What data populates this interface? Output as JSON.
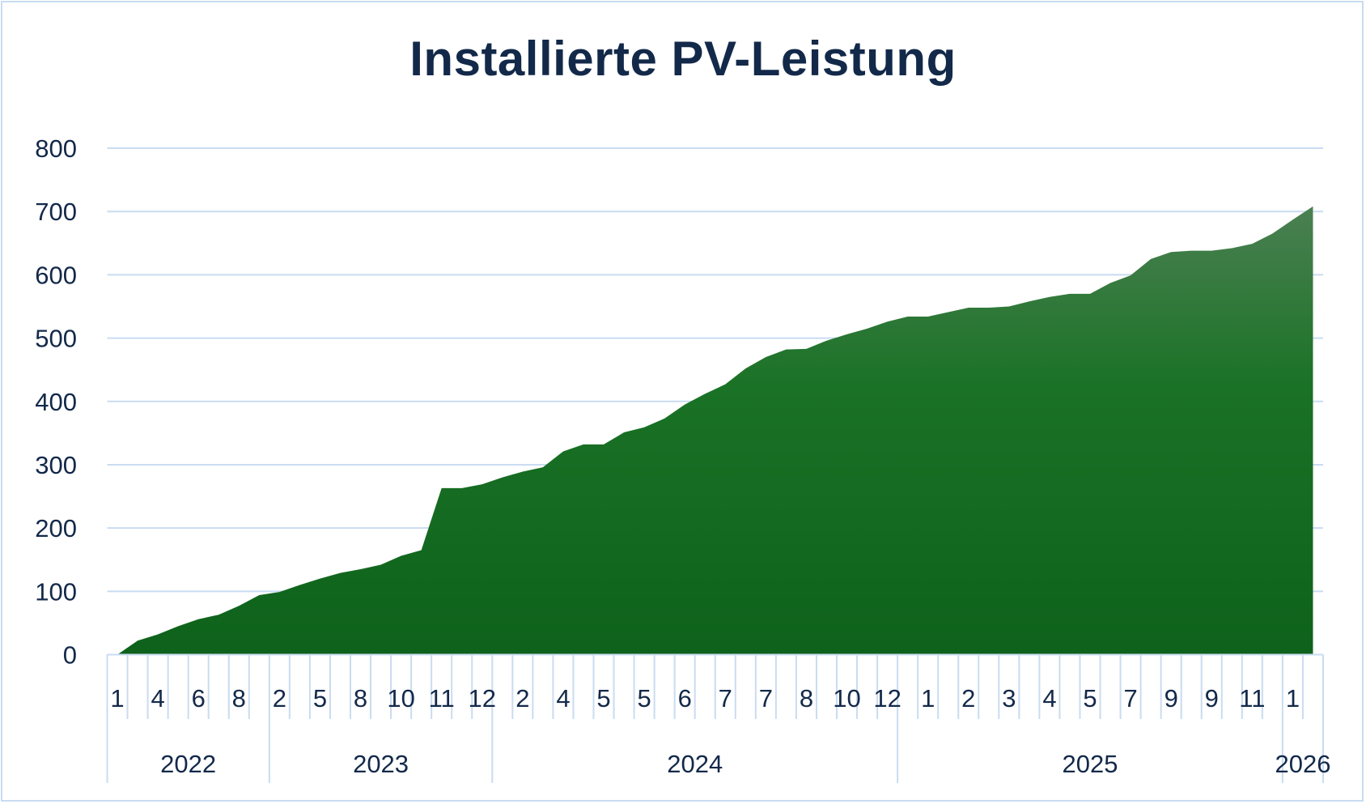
{
  "chart_data": {
    "type": "area",
    "title": "Installierte PV-Leistung",
    "xlabel": "",
    "ylabel": "",
    "ylim": [
      0,
      800
    ],
    "yticks": [
      0,
      100,
      200,
      300,
      400,
      500,
      600,
      700,
      800
    ],
    "grid": true,
    "legend": "none",
    "month_tick_labels": [
      "1",
      "4",
      "6",
      "8",
      "2",
      "5",
      "8",
      "10",
      "11",
      "12",
      "2",
      "4",
      "5",
      "5",
      "6",
      "7",
      "7",
      "8",
      "10",
      "12",
      "1",
      "2",
      "3",
      "4",
      "5",
      "7",
      "9",
      "9",
      "11",
      "1"
    ],
    "month_label_every": 2,
    "year_groups": [
      {
        "label": "2022",
        "start": 0,
        "count": 8
      },
      {
        "label": "2023",
        "start": 8,
        "count": 11
      },
      {
        "label": "2024",
        "start": 19,
        "count": 20
      },
      {
        "label": "2025",
        "start": 39,
        "count": 19
      },
      {
        "label": "2026",
        "start": 58,
        "count": 2
      }
    ],
    "values": [
      0,
      22,
      32,
      45,
      56,
      63,
      77,
      94,
      99,
      110,
      120,
      129,
      135,
      142,
      156,
      165,
      263,
      263,
      269,
      280,
      289,
      296,
      321,
      332,
      332,
      351,
      359,
      373,
      395,
      412,
      427,
      452,
      470,
      482,
      483,
      496,
      506,
      515,
      526,
      534,
      534,
      541,
      548,
      548,
      550,
      558,
      565,
      570,
      570,
      587,
      599,
      625,
      636,
      638,
      638,
      642,
      649,
      665,
      687,
      708
    ],
    "colors": {
      "fill_top": "#4b8052",
      "fill_mid": "#1a7226",
      "fill_bottom": "#0e621b",
      "grid": "#c9dcf1",
      "text": "#13294a"
    }
  }
}
